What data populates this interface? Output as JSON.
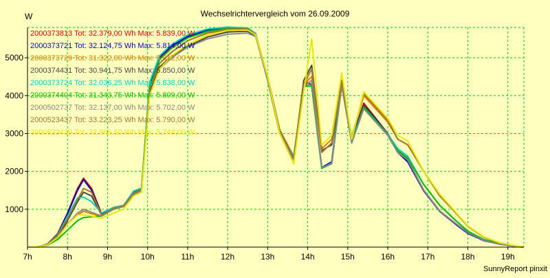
{
  "chart_data": {
    "type": "line",
    "title": "Wechselrichtervergleich vom 26.09.2009",
    "ylabel": "W",
    "xlabel": "",
    "footer": "SunnyReport pinxit",
    "grid": true,
    "legend_position": "top-left",
    "colors": {
      "background": "#ffffc0",
      "grid": "#00cc00",
      "axis": "#000000"
    },
    "xlim": [
      7,
      19.4
    ],
    "ylim": [
      0,
      5800
    ],
    "x_ticks": [
      {
        "value": 7,
        "label": "7h"
      },
      {
        "value": 8,
        "label": "8h"
      },
      {
        "value": 9,
        "label": "9h"
      },
      {
        "value": 10,
        "label": "10h"
      },
      {
        "value": 11,
        "label": "11h"
      },
      {
        "value": 12,
        "label": "12h"
      },
      {
        "value": 13,
        "label": "13h"
      },
      {
        "value": 14,
        "label": "14h"
      },
      {
        "value": 15,
        "label": "15h"
      },
      {
        "value": 16,
        "label": "16h"
      },
      {
        "value": 17,
        "label": "17h"
      },
      {
        "value": 18,
        "label": "18h"
      },
      {
        "value": 19,
        "label": "19h"
      }
    ],
    "y_ticks": [
      {
        "value": 1000,
        "label": "1000"
      },
      {
        "value": 2000,
        "label": "2000"
      },
      {
        "value": 3000,
        "label": "3000"
      },
      {
        "value": 4000,
        "label": "4000"
      },
      {
        "value": 5000,
        "label": "5000"
      }
    ],
    "x": [
      7.0,
      7.25,
      7.5,
      7.75,
      8.0,
      8.25,
      8.4,
      8.6,
      8.85,
      9.15,
      9.4,
      9.65,
      9.85,
      10.05,
      10.3,
      10.6,
      11.0,
      11.5,
      12.0,
      12.5,
      12.7,
      13.0,
      13.3,
      13.65,
      13.9,
      14.1,
      14.35,
      14.6,
      14.85,
      15.1,
      15.4,
      15.7,
      16.0,
      16.25,
      16.5,
      16.9,
      17.3,
      17.7,
      18.0,
      18.4,
      18.8,
      19.2,
      19.4
    ],
    "series": [
      {
        "name": "2000373813",
        "label": "2000373813 Tot: 32.379,00 Wh Max: 5.839,00 W",
        "color": "#cc0000",
        "values": [
          0,
          0,
          80,
          350,
          900,
          1550,
          1820,
          1550,
          880,
          1050,
          1100,
          1450,
          1550,
          4300,
          5000,
          5300,
          5550,
          5720,
          5780,
          5760,
          5620,
          4400,
          3000,
          2350,
          4350,
          4300,
          2100,
          2250,
          4400,
          2850,
          3800,
          3400,
          3000,
          2550,
          2300,
          1500,
          950,
          620,
          380,
          180,
          80,
          20,
          0
        ]
      },
      {
        "name": "2000373721",
        "label": "2000373721 Tot: 32.124,75 Wh Max: 5.814,00 W",
        "color": "#0000cc",
        "values": [
          0,
          0,
          70,
          330,
          880,
          1500,
          1780,
          1500,
          860,
          1040,
          1090,
          1440,
          1540,
          4280,
          5020,
          5320,
          5560,
          5730,
          5790,
          5770,
          5620,
          4420,
          3020,
          2380,
          4280,
          4250,
          2100,
          2250,
          4380,
          2850,
          3750,
          3380,
          2980,
          2500,
          2250,
          1480,
          940,
          600,
          360,
          170,
          80,
          20,
          0
        ]
      },
      {
        "name": "2000373729",
        "label": "2000373729 Tot: 31.322,00 Wh Max: 5.812,00 W",
        "color": "#e07a00",
        "values": [
          0,
          0,
          60,
          260,
          620,
          850,
          950,
          880,
          820,
          1000,
          1080,
          1400,
          1500,
          4100,
          4850,
          5150,
          5450,
          5650,
          5730,
          5720,
          5600,
          4500,
          3100,
          2400,
          4300,
          4500,
          2600,
          2850,
          4400,
          2900,
          4000,
          3650,
          3300,
          2850,
          2700,
          2000,
          1350,
          900,
          550,
          260,
          110,
          30,
          0
        ]
      },
      {
        "name": "2000374431",
        "label": "2000374431 Tot: 30.941,75 Wh Max: 5.850,00 W",
        "color": "#444444",
        "values": [
          0,
          0,
          60,
          250,
          700,
          1200,
          1450,
          1350,
          850,
          1000,
          1080,
          1400,
          1500,
          4050,
          4750,
          5050,
          5300,
          5550,
          5680,
          5700,
          5580,
          4450,
          3000,
          2300,
          4400,
          4800,
          2550,
          2700,
          4300,
          2800,
          3750,
          3350,
          2950,
          2500,
          2300,
          1500,
          950,
          620,
          380,
          180,
          80,
          20,
          0
        ]
      },
      {
        "name": "2000373724",
        "label": "2000373724 Tot: 32.036,25 Wh Max: 5.838,00 W",
        "color": "#00cccc",
        "values": [
          0,
          0,
          70,
          320,
          820,
          1300,
          1320,
          1200,
          900,
          1050,
          1100,
          1480,
          1560,
          4350,
          5050,
          5350,
          5600,
          5760,
          5810,
          5790,
          5640,
          4420,
          3030,
          2400,
          4250,
          4280,
          2080,
          2220,
          4380,
          2800,
          3700,
          3350,
          2980,
          2600,
          2400,
          1650,
          1100,
          700,
          420,
          200,
          90,
          25,
          0
        ]
      },
      {
        "name": "2000374404",
        "label": "2000374404 Tot: 31.343,75 Wh Max: 5.809,00 W",
        "color": "#00bb00",
        "values": [
          0,
          0,
          50,
          200,
          450,
          700,
          780,
          800,
          820,
          1000,
          1080,
          1420,
          1520,
          4200,
          4950,
          5250,
          5520,
          5700,
          5780,
          5760,
          5620,
          4400,
          3000,
          2350,
          4250,
          4250,
          2080,
          2200,
          4350,
          2750,
          3700,
          3350,
          2950,
          2550,
          2350,
          1650,
          1100,
          700,
          420,
          200,
          90,
          25,
          0
        ]
      },
      {
        "name": "2000502737",
        "label": "2000502737 Tot: 32.137,00 Wh Max: 5.702,00 W",
        "color": "#888888",
        "values": [
          0,
          0,
          60,
          240,
          600,
          900,
          1000,
          920,
          820,
          1000,
          1070,
          1380,
          1480,
          4000,
          4700,
          5000,
          5280,
          5500,
          5620,
          5650,
          5560,
          4400,
          3000,
          2300,
          4250,
          4400,
          2100,
          2200,
          4250,
          2750,
          3650,
          3300,
          2950,
          2500,
          2300,
          1500,
          950,
          620,
          380,
          180,
          80,
          20,
          0
        ]
      },
      {
        "name": "2000523437",
        "label": "2000523437 Tot: 33.223,25 Wh Max: 5.790,00 W",
        "color": "#a07830",
        "values": [
          0,
          0,
          70,
          300,
          750,
          1250,
          1550,
          1450,
          850,
          1020,
          1090,
          1430,
          1530,
          4150,
          4850,
          5150,
          5450,
          5660,
          5760,
          5760,
          5620,
          4500,
          3100,
          2350,
          4300,
          4700,
          2500,
          2750,
          4400,
          2900,
          4050,
          3700,
          3350,
          2850,
          2700,
          2000,
          1350,
          900,
          550,
          260,
          110,
          30,
          0
        ]
      },
      {
        "name": "2000523439",
        "label": "2000523439 Tot: 32.966,50 Wh Max: 5.748,00 W",
        "color": "#e8e800",
        "values": [
          0,
          0,
          60,
          250,
          600,
          850,
          850,
          820,
          760,
          900,
          1000,
          1350,
          1450,
          4000,
          4700,
          5050,
          5350,
          5600,
          5720,
          5730,
          5600,
          4500,
          3000,
          2200,
          4100,
          5500,
          2700,
          2950,
          4600,
          2850,
          4100,
          3750,
          3400,
          2950,
          2800,
          2000,
          1400,
          920,
          560,
          270,
          115,
          30,
          0
        ]
      }
    ]
  }
}
